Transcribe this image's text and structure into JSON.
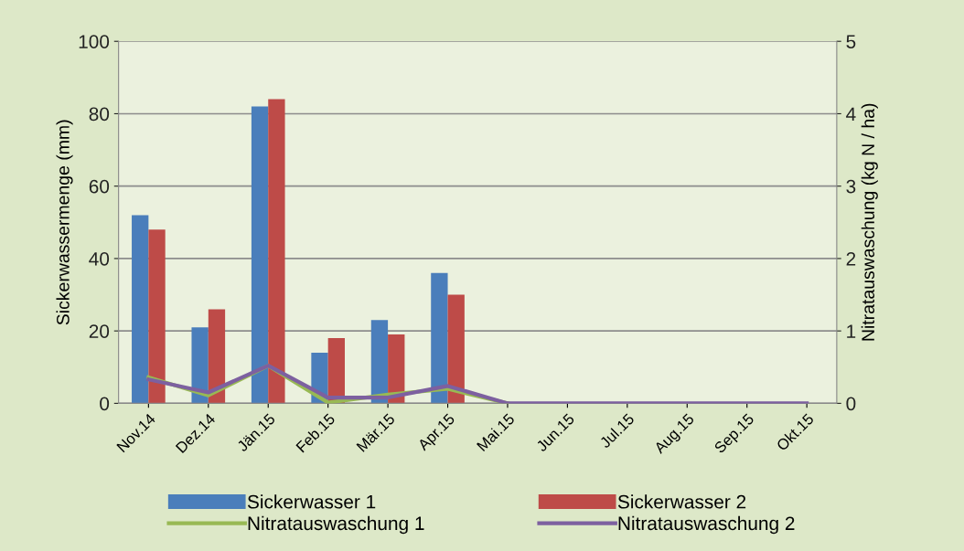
{
  "chart_data": {
    "type": "bar",
    "categories": [
      "Nov.14",
      "Dez.14",
      "Jän.15",
      "Feb.15",
      "Mär.15",
      "Apr.15",
      "Mai.15",
      "Jun.15",
      "Jul.15",
      "Aug.15",
      "Sep.15",
      "Okt.15"
    ],
    "ylabel": "Sickerwassermenge (mm)",
    "y2label": "Nitratauswaschung (kg N / ha)",
    "ylim": [
      0,
      100
    ],
    "yticks": [
      0,
      20,
      40,
      60,
      80,
      100
    ],
    "y2lim": [
      0,
      5
    ],
    "y2ticks": [
      0,
      1,
      2,
      3,
      4,
      5
    ],
    "grid": "y",
    "legend": "bottom",
    "series": [
      {
        "name": "Sickerwasser 1",
        "color": "#4a7ebb",
        "values": [
          52,
          21,
          82,
          14,
          23,
          36,
          0,
          0,
          0,
          0,
          0,
          0
        ]
      },
      {
        "name": "Sickerwasser 2",
        "color": "#be4b48",
        "values": [
          48,
          26,
          84,
          18,
          19,
          30,
          0,
          0,
          0,
          0,
          0,
          0
        ]
      },
      {
        "name": "Nitratauswaschung 1",
        "type": "line",
        "axis": "y2",
        "color": "#98b954",
        "values": [
          0.36,
          0.11,
          0.52,
          0.01,
          0.12,
          0.2,
          0,
          null,
          null,
          null,
          null,
          null
        ]
      },
      {
        "name": "Nitratauswaschung 2",
        "type": "line",
        "axis": "y2",
        "color": "#7d60a0",
        "values": [
          0.33,
          0.15,
          0.52,
          0.08,
          0.08,
          0.24,
          0,
          0,
          0,
          0,
          0,
          0
        ]
      }
    ]
  }
}
